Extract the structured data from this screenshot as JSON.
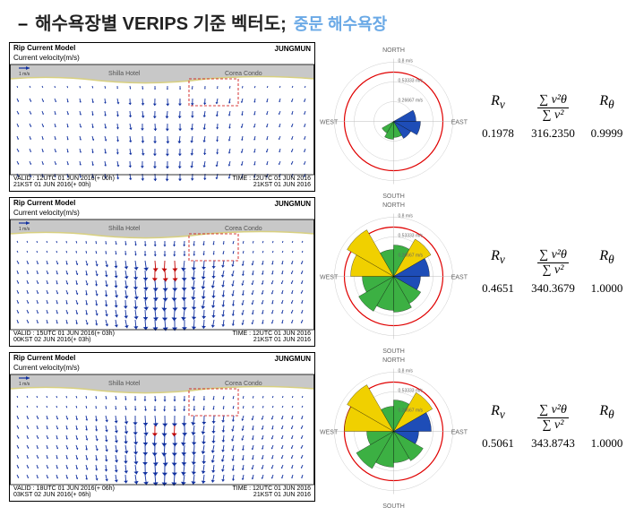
{
  "title": {
    "dash": "–",
    "main": "해수욕장별 VERIPS 기준 벡터도;",
    "sub": "중문 해수욕장"
  },
  "stats_header": {
    "rv": "R",
    "rv_sub": "v",
    "frac_num": "∑ v²θ",
    "frac_den": "∑ v²",
    "rtheta": "R",
    "rtheta_sub": "θ"
  },
  "panels_common": {
    "model_title": "Rip Current Model",
    "velocity_label": "Current velocity(m/s)",
    "location": "JUNGMUN",
    "hotel_label": "Shilla Hotel",
    "condo_label": "Corea Condo",
    "compass": {
      "N": "NORTH",
      "S": "SOUTH",
      "E": "EAST",
      "W": "WEST"
    },
    "scale_labels": [
      "0.8 m/s",
      "0.53333 m/s",
      "0.26667 m/s"
    ]
  },
  "rows": [
    {
      "valid1": "VALID : 12UTC 01 JUN 2016(+ 00h)",
      "valid2": "21KST 01 JUN 2016(+ 00h)",
      "time1": "TIME : 12UTC 01 JUN 2016",
      "time2": "21KST 01 JUN 2016",
      "rv": "0.1978",
      "frac": "316.2350",
      "rtheta": "0.9999",
      "rose": {
        "type": "sparse",
        "red_radius": 55,
        "wedges": [
          {
            "a0": 60,
            "a1": 90,
            "r": 25,
            "c": "#1e4db7"
          },
          {
            "a0": 90,
            "a1": 120,
            "r": 30,
            "c": "#1e4db7"
          },
          {
            "a0": 120,
            "a1": 150,
            "r": 22,
            "c": "#1e4db7"
          },
          {
            "a0": 150,
            "a1": 180,
            "r": 18,
            "c": "#3cb043"
          },
          {
            "a0": 180,
            "a1": 210,
            "r": 20,
            "c": "#3cb043"
          },
          {
            "a0": 210,
            "a1": 240,
            "r": 15,
            "c": "#3cb043"
          }
        ]
      },
      "vectors": {
        "density": "low"
      }
    },
    {
      "valid1": "VALID : 15UTC 01 JUN 2016(+ 03h)",
      "valid2": "00KST 02 JUN 2016(+ 03h)",
      "time1": "TIME : 12UTC 01 JUN 2016",
      "time2": "21KST 01 JUN 2016",
      "rv": "0.4651",
      "frac": "340.3679",
      "rtheta": "1.0000",
      "rose": {
        "type": "dense",
        "red_radius": 55,
        "wedges": [
          {
            "a0": 0,
            "a1": 30,
            "r": 35,
            "c": "#3cb043"
          },
          {
            "a0": 30,
            "a1": 60,
            "r": 48,
            "c": "#f0d000"
          },
          {
            "a0": 60,
            "a1": 90,
            "r": 40,
            "c": "#1e4db7"
          },
          {
            "a0": 90,
            "a1": 120,
            "r": 30,
            "c": "#1e4db7"
          },
          {
            "a0": 120,
            "a1": 150,
            "r": 35,
            "c": "#3cb043"
          },
          {
            "a0": 150,
            "a1": 180,
            "r": 40,
            "c": "#3cb043"
          },
          {
            "a0": 180,
            "a1": 210,
            "r": 38,
            "c": "#3cb043"
          },
          {
            "a0": 210,
            "a1": 240,
            "r": 45,
            "c": "#3cb043"
          },
          {
            "a0": 240,
            "a1": 270,
            "r": 35,
            "c": "#3cb043"
          },
          {
            "a0": 270,
            "a1": 300,
            "r": 48,
            "c": "#f0d000"
          },
          {
            "a0": 300,
            "a1": 330,
            "r": 60,
            "c": "#f0d000"
          },
          {
            "a0": 330,
            "a1": 360,
            "r": 30,
            "c": "#3cb043"
          }
        ]
      },
      "vectors": {
        "density": "high"
      }
    },
    {
      "valid1": "VALID : 18UTC 01 JUN 2016(+ 06h)",
      "valid2": "03KST 02 JUN 2016(+ 06h)",
      "time1": "TIME : 12UTC 01 JUN 2016",
      "time2": "21KST 01 JUN 2016",
      "rv": "0.5061",
      "frac": "343.8743",
      "rtheta": "1.0000",
      "rose": {
        "type": "dense",
        "red_radius": 55,
        "wedges": [
          {
            "a0": 0,
            "a1": 30,
            "r": 35,
            "c": "#3cb043"
          },
          {
            "a0": 30,
            "a1": 60,
            "r": 50,
            "c": "#f0d000"
          },
          {
            "a0": 60,
            "a1": 90,
            "r": 42,
            "c": "#1e4db7"
          },
          {
            "a0": 90,
            "a1": 120,
            "r": 28,
            "c": "#1e4db7"
          },
          {
            "a0": 120,
            "a1": 150,
            "r": 38,
            "c": "#3cb043"
          },
          {
            "a0": 150,
            "a1": 180,
            "r": 35,
            "c": "#3cb043"
          },
          {
            "a0": 180,
            "a1": 210,
            "r": 40,
            "c": "#3cb043"
          },
          {
            "a0": 210,
            "a1": 240,
            "r": 48,
            "c": "#3cb043"
          },
          {
            "a0": 240,
            "a1": 270,
            "r": 30,
            "c": "#3cb043"
          },
          {
            "a0": 270,
            "a1": 300,
            "r": 55,
            "c": "#f0d000"
          },
          {
            "a0": 300,
            "a1": 330,
            "r": 60,
            "c": "#f0d000"
          },
          {
            "a0": 330,
            "a1": 360,
            "r": 28,
            "c": "#3cb043"
          }
        ]
      },
      "vectors": {
        "density": "high"
      }
    }
  ],
  "colors": {
    "land": "#c8c8c8",
    "coastline": "#d8d080",
    "arrow_valid": "#1030a0",
    "arrow_invalid": "#c00000",
    "rose_ring": "#ccc",
    "rose_red": "#e00000",
    "rose_blue": "#1e4db7",
    "rose_green": "#3cb043",
    "rose_yellow": "#f0d000"
  }
}
